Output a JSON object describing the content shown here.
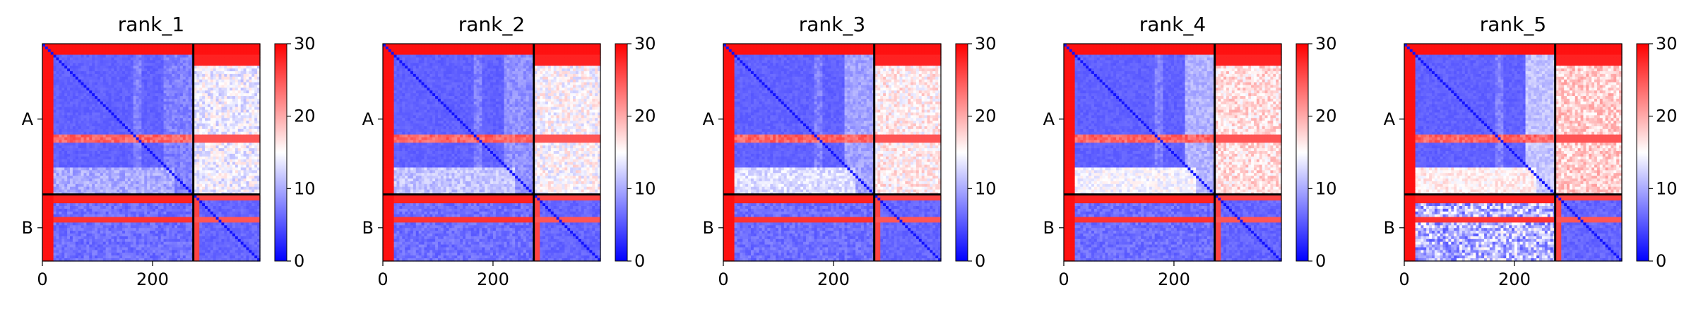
{
  "chart_data": {
    "type": "heatmap",
    "colormap": {
      "name": "bwr",
      "low": "#0000ff",
      "mid": "#ffffff",
      "high": "#ff0000"
    },
    "value_range": [
      0,
      30
    ],
    "chain_labels": [
      "A",
      "B"
    ],
    "chain_break": 274,
    "length": 395,
    "x_ticks": [
      "0",
      "200"
    ],
    "x_tick_values": [
      0,
      200
    ],
    "colorbar_ticks": [
      "0",
      "10",
      "20",
      "30"
    ],
    "colorbar_tick_values": [
      0,
      10,
      20,
      30
    ],
    "panels": [
      {
        "title": "rank_1",
        "variant": 0
      },
      {
        "title": "rank_2",
        "variant": 1
      },
      {
        "title": "rank_3",
        "variant": 2
      },
      {
        "title": "rank_4",
        "variant": 3
      },
      {
        "title": "rank_5",
        "variant": 4
      }
    ]
  }
}
